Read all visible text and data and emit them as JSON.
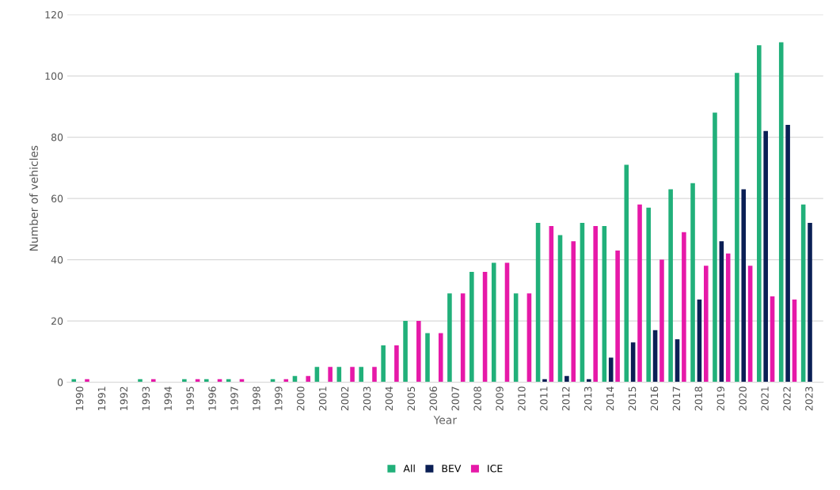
{
  "chart_data": {
    "type": "bar",
    "xlabel": "Year",
    "ylabel": "Number of vehicles",
    "categories": [
      "1990",
      "1991",
      "1992",
      "1993",
      "1994",
      "1995",
      "1996",
      "1997",
      "1998",
      "1999",
      "2000",
      "2001",
      "2002",
      "2003",
      "2004",
      "2005",
      "2006",
      "2007",
      "2008",
      "2009",
      "2010",
      "2011",
      "2012",
      "2013",
      "2014",
      "2015",
      "2016",
      "2017",
      "2018",
      "2019",
      "2020",
      "2021",
      "2022",
      "2023"
    ],
    "series": [
      {
        "name": "All",
        "color": "#21b07a",
        "values": [
          1,
          0,
          0,
          1,
          0,
          1,
          1,
          1,
          0,
          1,
          2,
          5,
          5,
          5,
          12,
          20,
          16,
          29,
          36,
          39,
          29,
          52,
          48,
          52,
          51,
          71,
          57,
          63,
          65,
          88,
          101,
          110,
          111,
          58
        ]
      },
      {
        "name": "BEV",
        "color": "#0b1f55",
        "values": [
          0,
          0,
          0,
          0,
          0,
          0,
          0,
          0,
          0,
          0,
          0,
          0,
          0,
          0,
          0,
          0,
          0,
          0,
          0,
          0,
          0,
          1,
          2,
          1,
          8,
          13,
          17,
          14,
          27,
          46,
          63,
          82,
          84,
          52
        ]
      },
      {
        "name": "ICE",
        "color": "#e619a8",
        "values": [
          1,
          0,
          0,
          1,
          0,
          1,
          1,
          1,
          0,
          1,
          2,
          5,
          5,
          5,
          12,
          20,
          16,
          29,
          36,
          39,
          29,
          51,
          46,
          51,
          43,
          58,
          40,
          49,
          38,
          42,
          38,
          28,
          27,
          null
        ]
      }
    ],
    "ylim": [
      0,
      120
    ],
    "yticks": [
      0,
      20,
      40,
      60,
      80,
      100,
      120
    ],
    "grid": "y",
    "legend": "bottom"
  }
}
